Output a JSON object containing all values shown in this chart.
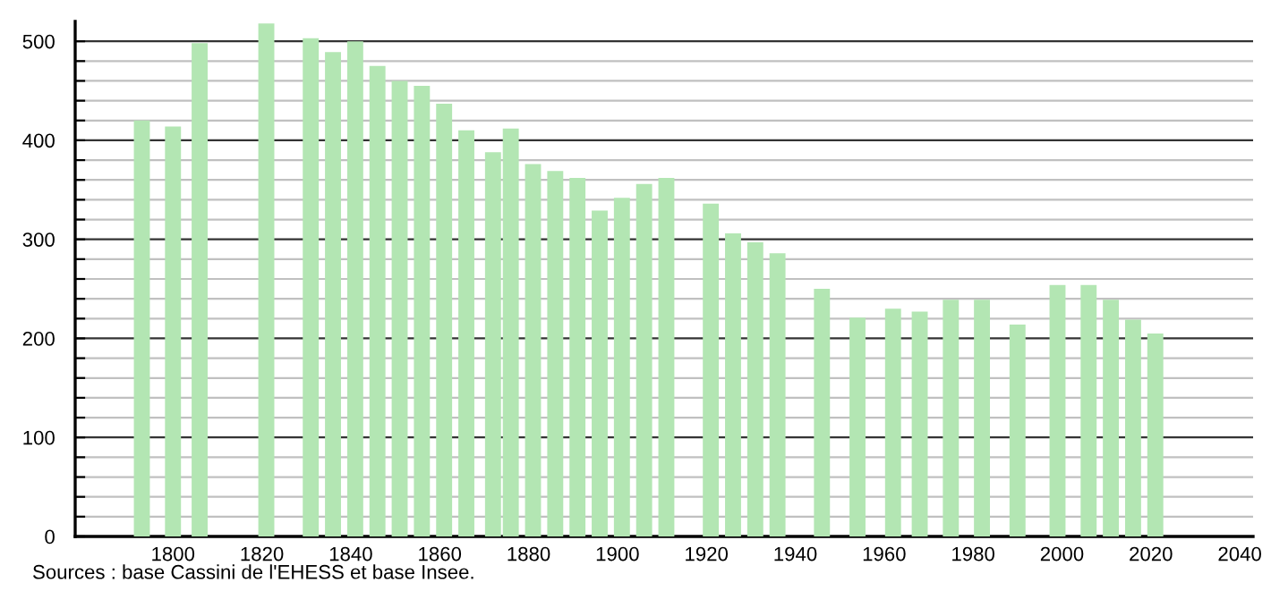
{
  "chart_data": {
    "type": "bar",
    "x": [
      1793,
      1800,
      1806,
      1821,
      1831,
      1836,
      1841,
      1846,
      1851,
      1856,
      1861,
      1866,
      1872,
      1876,
      1881,
      1886,
      1891,
      1896,
      1901,
      1906,
      1911,
      1921,
      1926,
      1931,
      1936,
      1946,
      1954,
      1962,
      1968,
      1975,
      1982,
      1990,
      1999,
      2006,
      2011,
      2016,
      2021
    ],
    "values": [
      420,
      414,
      498,
      518,
      503,
      489,
      500,
      475,
      460,
      455,
      437,
      410,
      388,
      412,
      376,
      369,
      362,
      329,
      342,
      356,
      362,
      336,
      306,
      297,
      286,
      250,
      221,
      230,
      227,
      239,
      239,
      214,
      254,
      254,
      239,
      219,
      205
    ],
    "color": "#b3e6b3",
    "xlim": [
      1778,
      2043
    ],
    "xticks": [
      1800,
      1820,
      1840,
      1860,
      1880,
      1900,
      1920,
      1940,
      1960,
      1980,
      2000,
      2020,
      2040
    ],
    "ylim": [
      0,
      520
    ],
    "yticks": [
      0,
      {
        "value": 20,
        "label": null
      },
      {
        "value": 40,
        "label": null
      },
      {
        "value": 60,
        "label": null
      },
      {
        "value": 80,
        "label": null
      },
      100,
      {
        "value": 120,
        "label": null
      },
      {
        "value": 140,
        "label": null
      },
      {
        "value": 160,
        "label": null
      },
      {
        "value": 180,
        "label": null
      },
      200,
      {
        "value": 220,
        "label": null
      },
      {
        "value": 240,
        "label": null
      },
      {
        "value": 260,
        "label": null
      },
      {
        "value": 280,
        "label": null
      },
      300,
      {
        "value": 320,
        "label": null
      },
      {
        "value": 340,
        "label": null
      },
      {
        "value": 360,
        "label": null
      },
      {
        "value": 380,
        "label": null
      },
      400,
      {
        "value": 420,
        "label": null
      },
      {
        "value": 440,
        "label": null
      },
      {
        "value": 460,
        "label": null
      },
      {
        "value": 480,
        "label": null
      },
      500
    ],
    "grid": "y",
    "annotations": [
      "Sources : base Cassini de l'EHESS et base Insee."
    ]
  }
}
